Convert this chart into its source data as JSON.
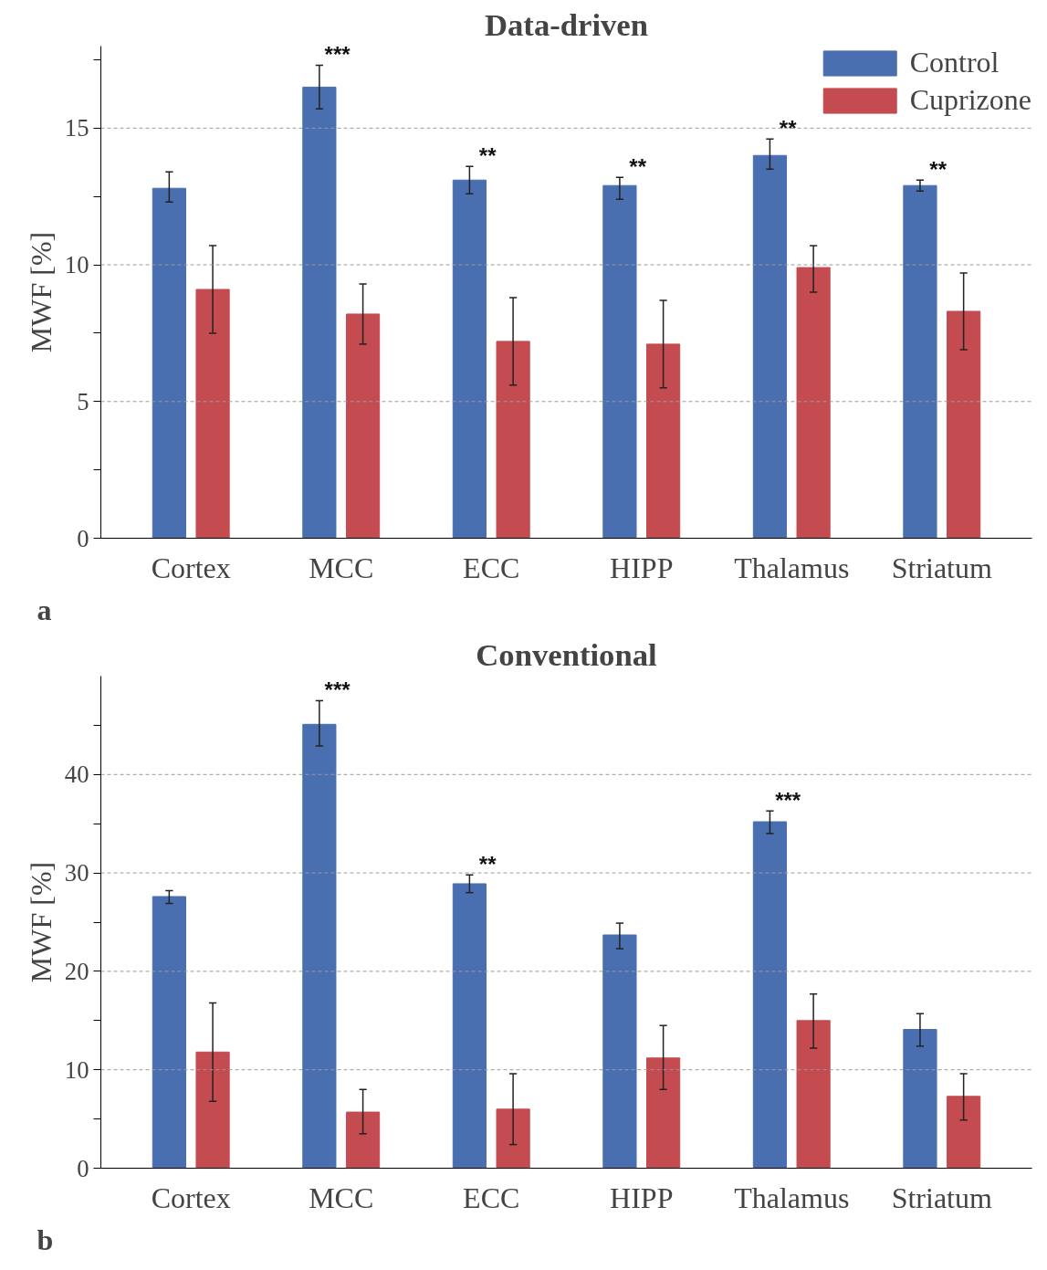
{
  "chart_data": [
    {
      "type": "bar",
      "title": "Data-driven",
      "ylabel": "MWF [%]",
      "categories": [
        "Cortex",
        "MCC",
        "ECC",
        "HIPP",
        "Thalamus",
        "Striatum"
      ],
      "series": [
        {
          "name": "Control",
          "color": "#4a6fb0",
          "values": [
            12.8,
            16.5,
            13.1,
            12.9,
            14.0,
            12.9
          ],
          "value_labels": [
            null,
            "***",
            "**",
            "**",
            "**",
            "**"
          ],
          "errors": [
            [
              12.3,
              13.4
            ],
            [
              15.7,
              17.3
            ],
            [
              12.6,
              13.6
            ],
            [
              12.4,
              13.2
            ],
            [
              13.5,
              14.6
            ],
            [
              12.7,
              13.1
            ]
          ]
        },
        {
          "name": "Cuprizone",
          "color": "#c44b50",
          "values": [
            9.1,
            8.2,
            7.2,
            7.1,
            9.9,
            8.3
          ],
          "errors": [
            [
              7.5,
              10.7
            ],
            [
              7.1,
              9.3
            ],
            [
              5.6,
              8.8
            ],
            [
              5.5,
              8.7
            ],
            [
              9.0,
              10.7
            ],
            [
              6.9,
              9.7
            ]
          ]
        }
      ],
      "ylim": [
        0,
        18
      ],
      "yticks": [
        0,
        {
          "value": 2.5,
          "label": null
        },
        5,
        {
          "value": 7.5,
          "label": null
        },
        10,
        {
          "value": 12.5,
          "label": null
        },
        15,
        {
          "value": 17.5,
          "label": null
        }
      ],
      "grid": "y",
      "legend": "top right",
      "annotations": [
        "a"
      ]
    },
    {
      "type": "bar",
      "title": "Conventional",
      "ylabel": "MWF [%]",
      "categories": [
        "Cortex",
        "MCC",
        "ECC",
        "HIPP",
        "Thalamus",
        "Striatum"
      ],
      "series": [
        {
          "color": "#4a6fb0",
          "values": [
            27.6,
            45.1,
            28.9,
            23.7,
            35.2,
            14.1
          ],
          "value_labels": [
            null,
            "***",
            "**",
            null,
            "***",
            null
          ],
          "errors": [
            [
              26.9,
              28.2
            ],
            [
              42.9,
              47.5
            ],
            [
              28.0,
              29.8
            ],
            [
              22.3,
              24.9
            ],
            [
              34.0,
              36.3
            ],
            [
              12.4,
              15.7
            ]
          ]
        },
        {
          "color": "#c44b50",
          "values": [
            11.8,
            5.7,
            6.0,
            11.2,
            15.0,
            7.3
          ],
          "errors": [
            [
              6.8,
              16.8
            ],
            [
              3.5,
              8.0
            ],
            [
              2.4,
              9.6
            ],
            [
              8.0,
              14.5
            ],
            [
              12.2,
              17.7
            ],
            [
              4.9,
              9.6
            ]
          ]
        }
      ],
      "ylim": [
        0,
        50
      ],
      "yticks": [
        0,
        {
          "value": 5,
          "label": null
        },
        10,
        {
          "value": 15,
          "label": null
        },
        20,
        {
          "value": 25,
          "label": null
        },
        30,
        {
          "value": 35,
          "label": null
        },
        40,
        {
          "value": 45,
          "label": null
        }
      ],
      "grid": "y",
      "annotations": [
        "b"
      ]
    }
  ]
}
